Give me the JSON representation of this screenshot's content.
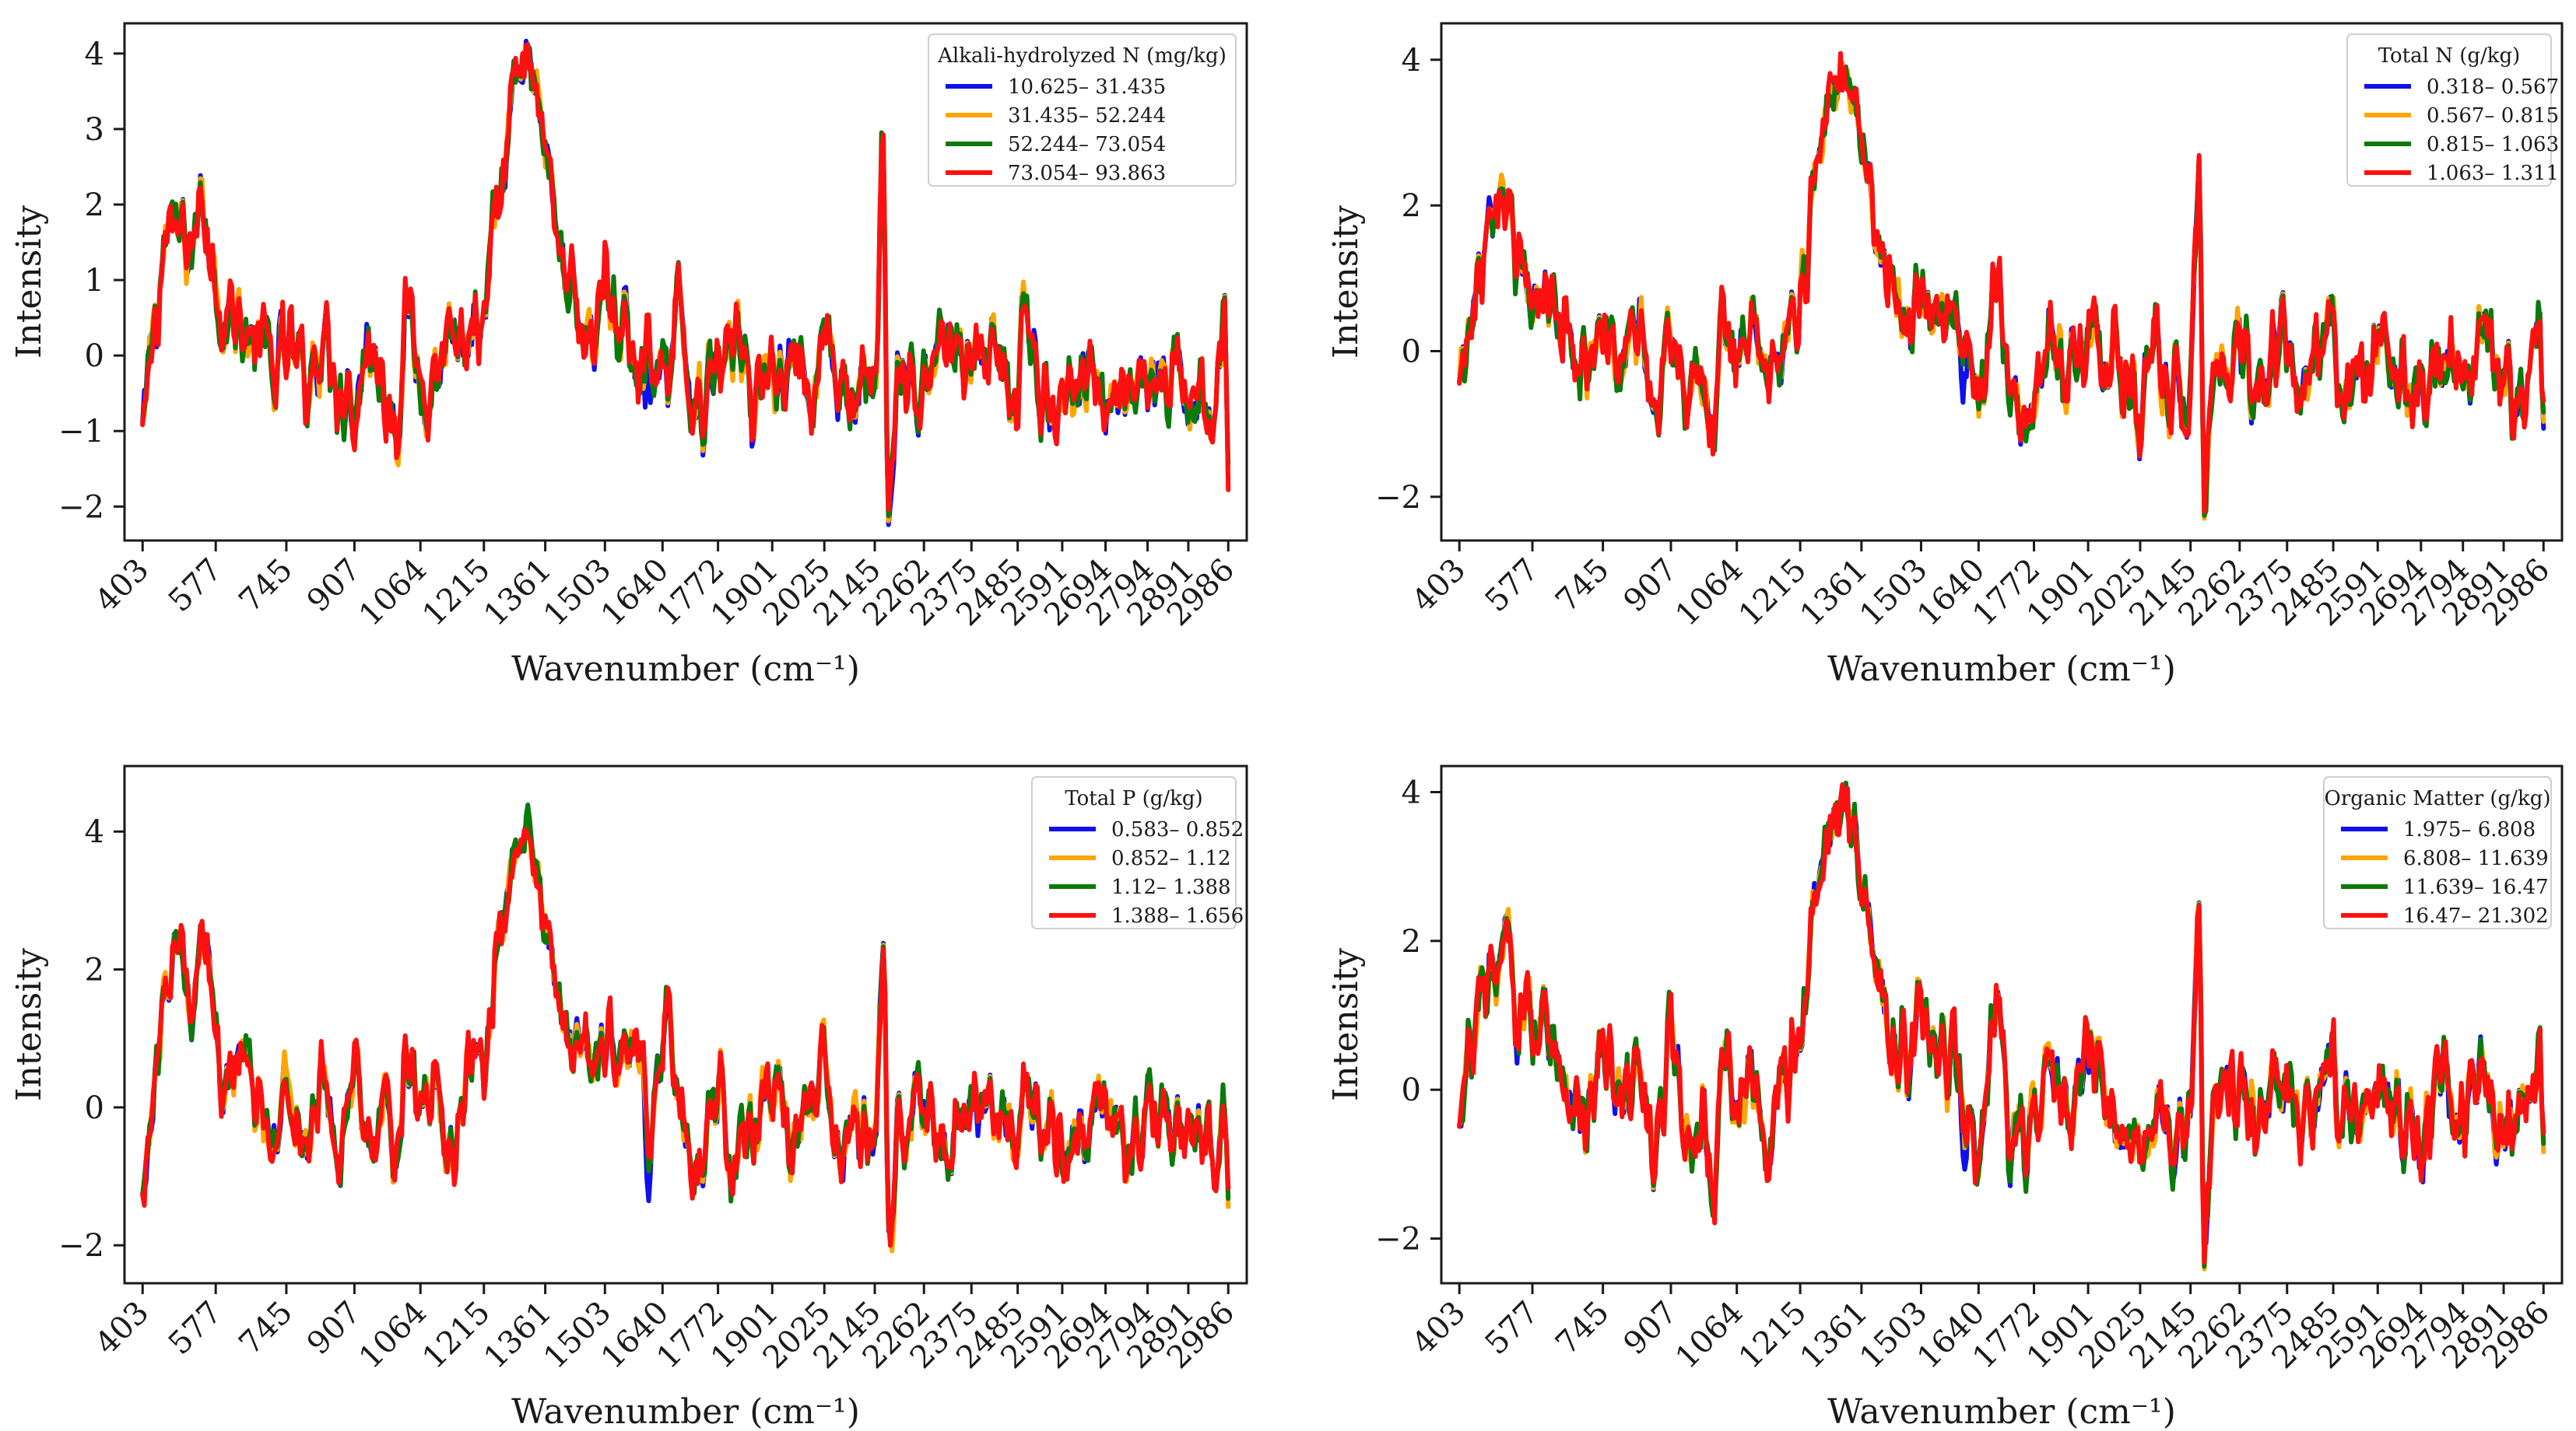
{
  "figure": {
    "description": "Four Raman-style spectra panels grouped by soil property ranges"
  },
  "chart_data": [
    {
      "type": "line",
      "title": "",
      "xlabel": "Wavenumber (cm⁻¹)",
      "ylabel": "Intensity",
      "x_ticks": [
        "403",
        "577",
        "745",
        "907",
        "1064",
        "1215",
        "1361",
        "1503",
        "1640",
        "1772",
        "1901",
        "2025",
        "2145",
        "2262",
        "2375",
        "2485",
        "2591",
        "2694",
        "2794",
        "2891",
        "2986"
      ],
      "xlim": [
        360,
        3030
      ],
      "ylim": [
        -2.45,
        4.4
      ],
      "y_ticks": [
        -2,
        -1,
        0,
        1,
        2,
        3,
        4
      ],
      "legend_title": "Alkali-hydrolyzed N (mg/kg)",
      "legend_position": "top-right",
      "series": [
        {
          "name": "10.625– 31.435",
          "color": "#1010ee"
        },
        {
          "name": "31.435– 52.244",
          "color": "#ffa500"
        },
        {
          "name": "52.244– 73.054",
          "color": "#0a7a0a"
        },
        {
          "name": "73.054– 93.863",
          "color": "#ff1010"
        }
      ],
      "shape_points": [
        [
          403,
          -1.1
        ],
        [
          430,
          0.4
        ],
        [
          460,
          1.5
        ],
        [
          490,
          1.7
        ],
        [
          520,
          1.4
        ],
        [
          545,
          2.2
        ],
        [
          577,
          1.0
        ],
        [
          600,
          0.6
        ],
        [
          640,
          0.4
        ],
        [
          680,
          0.1
        ],
        [
          720,
          -0.2
        ],
        [
          745,
          0.1
        ],
        [
          790,
          -0.3
        ],
        [
          830,
          0.2
        ],
        [
          870,
          -0.3
        ],
        [
          907,
          -0.6
        ],
        [
          940,
          0.2
        ],
        [
          980,
          -0.5
        ],
        [
          1010,
          -0.8
        ],
        [
          1030,
          0.6
        ],
        [
          1064,
          -0.4
        ],
        [
          1100,
          -0.2
        ],
        [
          1140,
          0.4
        ],
        [
          1180,
          -0.3
        ],
        [
          1215,
          0.5
        ],
        [
          1250,
          2.0
        ],
        [
          1290,
          3.6
        ],
        [
          1320,
          3.9
        ],
        [
          1340,
          3.5
        ],
        [
          1361,
          2.7
        ],
        [
          1400,
          1.3
        ],
        [
          1430,
          0.7
        ],
        [
          1470,
          0.2
        ],
        [
          1503,
          1.0
        ],
        [
          1540,
          0.4
        ],
        [
          1580,
          -0.3
        ],
        [
          1610,
          0.2
        ],
        [
          1640,
          -0.6
        ],
        [
          1680,
          0.6
        ],
        [
          1720,
          -0.7
        ],
        [
          1772,
          -0.3
        ],
        [
          1810,
          0.3
        ],
        [
          1850,
          -0.5
        ],
        [
          1901,
          -0.2
        ],
        [
          1950,
          0.0
        ],
        [
          2000,
          -0.5
        ],
        [
          2025,
          0.5
        ],
        [
          2060,
          -0.4
        ],
        [
          2100,
          -0.9
        ],
        [
          2130,
          -0.3
        ],
        [
          2145,
          -0.5
        ],
        [
          2165,
          2.6
        ],
        [
          2178,
          -2.1
        ],
        [
          2200,
          -0.2
        ],
        [
          2262,
          -0.6
        ],
        [
          2300,
          0.3
        ],
        [
          2375,
          -0.3
        ],
        [
          2420,
          -0.1
        ],
        [
          2485,
          -0.6
        ],
        [
          2500,
          0.6
        ],
        [
          2540,
          -0.4
        ],
        [
          2591,
          -0.5
        ],
        [
          2640,
          -0.3
        ],
        [
          2694,
          -0.6
        ],
        [
          2740,
          -0.4
        ],
        [
          2794,
          -0.4
        ],
        [
          2850,
          -0.5
        ],
        [
          2891,
          -0.4
        ],
        [
          2950,
          -0.6
        ],
        [
          2975,
          0.2
        ],
        [
          2986,
          -1.2
        ]
      ]
    },
    {
      "type": "line",
      "title": "",
      "xlabel": "Wavenumber (cm⁻¹)",
      "ylabel": "Intensity",
      "x_ticks": [
        "403",
        "577",
        "745",
        "907",
        "1064",
        "1215",
        "1361",
        "1503",
        "1640",
        "1772",
        "1901",
        "2025",
        "2145",
        "2262",
        "2375",
        "2485",
        "2591",
        "2694",
        "2794",
        "2891",
        "2986"
      ],
      "xlim": [
        360,
        3030
      ],
      "ylim": [
        -2.6,
        4.5
      ],
      "y_ticks": [
        -2,
        0,
        2,
        4
      ],
      "legend_title": "Total N (g/kg)",
      "legend_position": "top-right",
      "series": [
        {
          "name": "0.318– 0.567",
          "color": "#1010ee"
        },
        {
          "name": "0.567– 0.815",
          "color": "#ffa500"
        },
        {
          "name": "0.815– 1.063",
          "color": "#0a7a0a"
        },
        {
          "name": "1.063– 1.311",
          "color": "#ff1010"
        }
      ],
      "shape_points": [
        [
          403,
          -0.6
        ],
        [
          430,
          0.3
        ],
        [
          460,
          1.3
        ],
        [
          490,
          1.5
        ],
        [
          520,
          2.0
        ],
        [
          545,
          1.1
        ],
        [
          577,
          0.8
        ],
        [
          610,
          0.9
        ],
        [
          650,
          0.2
        ],
        [
          700,
          -0.4
        ],
        [
          745,
          0.4
        ],
        [
          790,
          -0.2
        ],
        [
          830,
          0.3
        ],
        [
          870,
          -0.8
        ],
        [
          907,
          0.7
        ],
        [
          940,
          -0.4
        ],
        [
          980,
          -0.5
        ],
        [
          1010,
          -1.2
        ],
        [
          1030,
          0.5
        ],
        [
          1064,
          -0.3
        ],
        [
          1100,
          0.1
        ],
        [
          1140,
          -0.5
        ],
        [
          1180,
          0.2
        ],
        [
          1215,
          0.6
        ],
        [
          1250,
          2.5
        ],
        [
          1290,
          3.6
        ],
        [
          1320,
          3.9
        ],
        [
          1340,
          3.5
        ],
        [
          1361,
          2.9
        ],
        [
          1400,
          1.6
        ],
        [
          1430,
          0.8
        ],
        [
          1470,
          0.4
        ],
        [
          1503,
          1.0
        ],
        [
          1540,
          0.2
        ],
        [
          1580,
          0.5
        ],
        [
          1610,
          -0.2
        ],
        [
          1640,
          -1.0
        ],
        [
          1680,
          1.1
        ],
        [
          1720,
          -0.6
        ],
        [
          1772,
          -0.8
        ],
        [
          1810,
          0.3
        ],
        [
          1850,
          -0.4
        ],
        [
          1901,
          0.3
        ],
        [
          1950,
          0.0
        ],
        [
          2000,
          -0.5
        ],
        [
          2025,
          -1.0
        ],
        [
          2060,
          -0.2
        ],
        [
          2100,
          -0.6
        ],
        [
          2130,
          -0.8
        ],
        [
          2145,
          -0.6
        ],
        [
          2165,
          2.5
        ],
        [
          2178,
          -2.0
        ],
        [
          2200,
          -0.3
        ],
        [
          2262,
          0.1
        ],
        [
          2300,
          -0.5
        ],
        [
          2375,
          0.4
        ],
        [
          2420,
          -0.4
        ],
        [
          2485,
          0.5
        ],
        [
          2500,
          -0.6
        ],
        [
          2540,
          -0.2
        ],
        [
          2591,
          0.1
        ],
        [
          2640,
          -0.3
        ],
        [
          2694,
          -0.8
        ],
        [
          2740,
          0.1
        ],
        [
          2794,
          -0.5
        ],
        [
          2850,
          0.2
        ],
        [
          2891,
          -0.6
        ],
        [
          2950,
          -0.4
        ],
        [
          2975,
          0.3
        ],
        [
          2986,
          -1.2
        ]
      ]
    },
    {
      "type": "line",
      "title": "",
      "xlabel": "Wavenumber (cm⁻¹)",
      "ylabel": "Intensity",
      "x_ticks": [
        "403",
        "577",
        "745",
        "907",
        "1064",
        "1215",
        "1361",
        "1503",
        "1640",
        "1772",
        "1901",
        "2025",
        "2145",
        "2262",
        "2375",
        "2485",
        "2591",
        "2694",
        "2794",
        "2891",
        "2986"
      ],
      "xlim": [
        360,
        3030
      ],
      "ylim": [
        -2.55,
        4.95
      ],
      "y_ticks": [
        -2,
        0,
        2,
        4
      ],
      "legend_title": "Total P (g/kg)",
      "legend_position": "top-right",
      "series": [
        {
          "name": "0.583– 0.852",
          "color": "#1010ee"
        },
        {
          "name": "0.852– 1.12",
          "color": "#ffa500"
        },
        {
          "name": "1.12– 1.388",
          "color": "#0a7a0a"
        },
        {
          "name": "1.388– 1.656",
          "color": "#ff1010"
        }
      ],
      "shape_points": [
        [
          403,
          -1.4
        ],
        [
          430,
          0.4
        ],
        [
          460,
          1.7
        ],
        [
          490,
          2.3
        ],
        [
          520,
          1.2
        ],
        [
          545,
          2.6
        ],
        [
          577,
          1.2
        ],
        [
          600,
          0.3
        ],
        [
          640,
          0.6
        ],
        [
          680,
          0.0
        ],
        [
          720,
          -0.5
        ],
        [
          745,
          0.3
        ],
        [
          790,
          -0.5
        ],
        [
          830,
          0.4
        ],
        [
          870,
          -0.8
        ],
        [
          907,
          0.4
        ],
        [
          940,
          -0.6
        ],
        [
          980,
          0.0
        ],
        [
          1010,
          -1.2
        ],
        [
          1030,
          0.7
        ],
        [
          1064,
          -0.3
        ],
        [
          1100,
          0.1
        ],
        [
          1140,
          -0.5
        ],
        [
          1180,
          0.6
        ],
        [
          1215,
          0.4
        ],
        [
          1250,
          2.5
        ],
        [
          1290,
          3.7
        ],
        [
          1320,
          4.1
        ],
        [
          1340,
          3.4
        ],
        [
          1361,
          2.7
        ],
        [
          1400,
          1.4
        ],
        [
          1430,
          0.9
        ],
        [
          1470,
          0.4
        ],
        [
          1503,
          1.2
        ],
        [
          1540,
          0.6
        ],
        [
          1580,
          1.0
        ],
        [
          1610,
          -0.4
        ],
        [
          1640,
          1.2
        ],
        [
          1680,
          0.2
        ],
        [
          1720,
          -1.0
        ],
        [
          1772,
          0.4
        ],
        [
          1810,
          -0.8
        ],
        [
          1850,
          -0.2
        ],
        [
          1901,
          0.3
        ],
        [
          1950,
          -0.3
        ],
        [
          2000,
          -0.2
        ],
        [
          2025,
          0.7
        ],
        [
          2060,
          -0.7
        ],
        [
          2100,
          -0.3
        ],
        [
          2130,
          -0.6
        ],
        [
          2145,
          -0.5
        ],
        [
          2165,
          2.4
        ],
        [
          2178,
          -2.0
        ],
        [
          2200,
          -0.2
        ],
        [
          2262,
          0.0
        ],
        [
          2300,
          -0.6
        ],
        [
          2375,
          -0.2
        ],
        [
          2420,
          0.1
        ],
        [
          2485,
          -0.6
        ],
        [
          2500,
          0.5
        ],
        [
          2540,
          -0.3
        ],
        [
          2591,
          -0.6
        ],
        [
          2640,
          -0.5
        ],
        [
          2694,
          0.2
        ],
        [
          2740,
          -0.7
        ],
        [
          2794,
          0.0
        ],
        [
          2850,
          -0.5
        ],
        [
          2891,
          -0.3
        ],
        [
          2950,
          -0.6
        ],
        [
          2975,
          0.1
        ],
        [
          2986,
          -1.2
        ]
      ]
    },
    {
      "type": "line",
      "title": "",
      "xlabel": "Wavenumber (cm⁻¹)",
      "ylabel": "Intensity",
      "x_ticks": [
        "403",
        "577",
        "745",
        "907",
        "1064",
        "1215",
        "1361",
        "1503",
        "1640",
        "1772",
        "1901",
        "2025",
        "2145",
        "2262",
        "2375",
        "2485",
        "2591",
        "2694",
        "2794",
        "2891",
        "2986"
      ],
      "xlim": [
        360,
        3030
      ],
      "ylim": [
        -2.6,
        4.35
      ],
      "y_ticks": [
        -2,
        0,
        2,
        4
      ],
      "legend_title": "Organic Matter (g/kg)",
      "legend_position": "top-right",
      "series": [
        {
          "name": "1.975– 6.808",
          "color": "#1010ee"
        },
        {
          "name": "6.808– 11.639",
          "color": "#ffa500"
        },
        {
          "name": "11.639– 16.47",
          "color": "#0a7a0a"
        },
        {
          "name": "16.47– 21.302",
          "color": "#ff1010"
        }
      ],
      "shape_points": [
        [
          403,
          -0.6
        ],
        [
          430,
          0.4
        ],
        [
          460,
          1.2
        ],
        [
          490,
          1.4
        ],
        [
          520,
          1.9
        ],
        [
          545,
          1.0
        ],
        [
          577,
          0.9
        ],
        [
          610,
          1.0
        ],
        [
          650,
          0.3
        ],
        [
          700,
          -0.5
        ],
        [
          745,
          0.4
        ],
        [
          790,
          -0.3
        ],
        [
          830,
          0.3
        ],
        [
          870,
          -0.9
        ],
        [
          907,
          0.6
        ],
        [
          940,
          -0.5
        ],
        [
          980,
          -0.4
        ],
        [
          1010,
          -1.3
        ],
        [
          1030,
          0.6
        ],
        [
          1064,
          -0.3
        ],
        [
          1100,
          0.1
        ],
        [
          1140,
          -0.6
        ],
        [
          1180,
          0.2
        ],
        [
          1215,
          0.6
        ],
        [
          1250,
          2.6
        ],
        [
          1290,
          3.7
        ],
        [
          1320,
          3.9
        ],
        [
          1340,
          3.5
        ],
        [
          1361,
          2.9
        ],
        [
          1400,
          1.5
        ],
        [
          1430,
          0.8
        ],
        [
          1470,
          0.5
        ],
        [
          1503,
          1.1
        ],
        [
          1540,
          0.3
        ],
        [
          1580,
          0.6
        ],
        [
          1610,
          -0.3
        ],
        [
          1640,
          -0.9
        ],
        [
          1680,
          1.2
        ],
        [
          1720,
          -0.7
        ],
        [
          1772,
          -0.6
        ],
        [
          1810,
          0.3
        ],
        [
          1850,
          -0.5
        ],
        [
          1901,
          0.3
        ],
        [
          1950,
          -0.1
        ],
        [
          2000,
          -0.5
        ],
        [
          2025,
          -1.0
        ],
        [
          2060,
          -0.1
        ],
        [
          2100,
          -0.6
        ],
        [
          2130,
          -0.7
        ],
        [
          2145,
          -0.5
        ],
        [
          2165,
          2.7
        ],
        [
          2178,
          -2.1
        ],
        [
          2200,
          -0.3
        ],
        [
          2262,
          0.1
        ],
        [
          2300,
          -0.5
        ],
        [
          2375,
          0.4
        ],
        [
          2420,
          -0.5
        ],
        [
          2485,
          0.4
        ],
        [
          2500,
          -0.6
        ],
        [
          2540,
          -0.3
        ],
        [
          2591,
          0.2
        ],
        [
          2640,
          -0.3
        ],
        [
          2694,
          -0.8
        ],
        [
          2740,
          0.2
        ],
        [
          2794,
          -0.5
        ],
        [
          2850,
          0.1
        ],
        [
          2891,
          -0.6
        ],
        [
          2950,
          -0.4
        ],
        [
          2975,
          0.3
        ],
        [
          2986,
          -1.2
        ]
      ]
    }
  ]
}
